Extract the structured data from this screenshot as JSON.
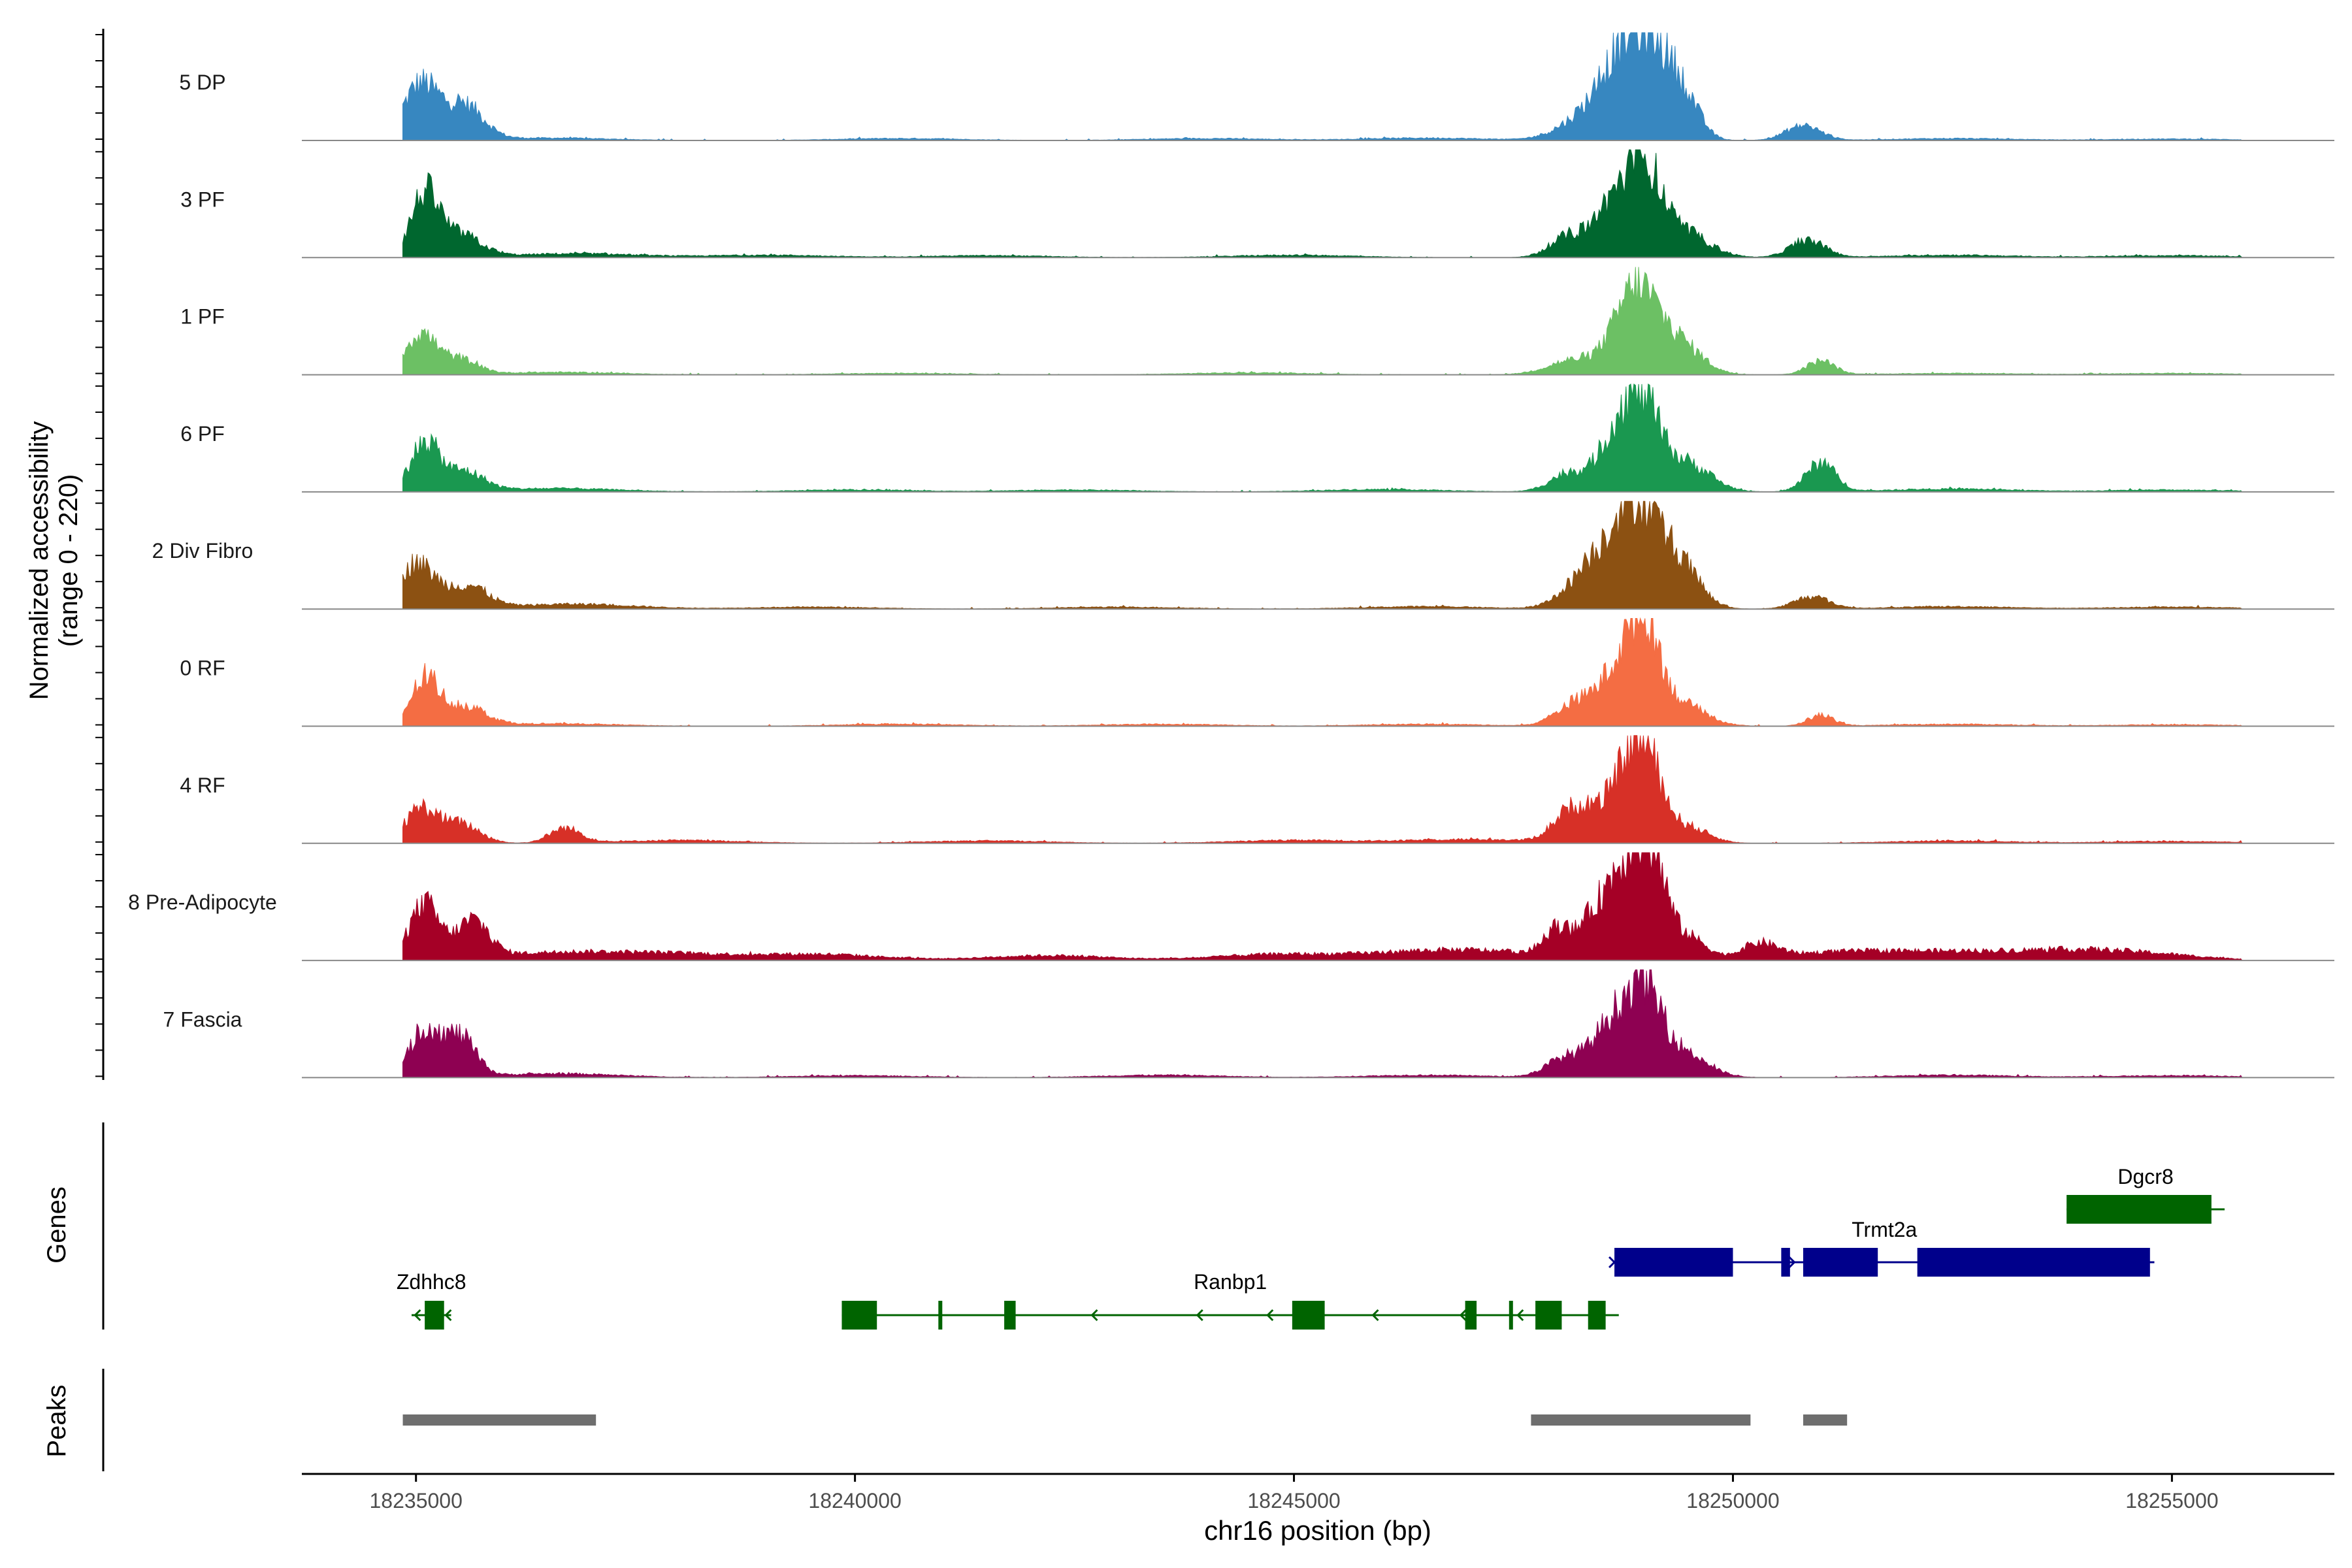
{
  "chart_data": {
    "type": "area",
    "title": "",
    "xlabel": "chr16 position (bp)",
    "ylabel_line1": "Normalized accessibility",
    "ylabel_line2": "(range 0 - 220)",
    "genes_label": "Genes",
    "peaks_label": "Peaks",
    "xlim": [
      18233700,
      18256850
    ],
    "ylim": [
      0,
      220
    ],
    "x_ticks": [
      18235000,
      18240000,
      18245000,
      18250000,
      18255000
    ],
    "x_tick_labels": [
      "18235000",
      "18240000",
      "18245000",
      "18250000",
      "18255000"
    ],
    "tracks": [
      {
        "name": "5 DP",
        "color": "#3787C0",
        "peaks": [
          [
            18235050,
            112,
            200
          ],
          [
            18235550,
            70,
            220
          ],
          [
            18248300,
            40,
            300
          ],
          [
            18248750,
            150,
            260
          ],
          [
            18249100,
            145,
            230
          ],
          [
            18249450,
            70,
            180
          ],
          [
            18250800,
            30,
            200
          ]
        ],
        "noise": [
          [
            18236500,
            5
          ],
          [
            18240500,
            4
          ],
          [
            18244000,
            4
          ],
          [
            18246500,
            5
          ],
          [
            18252500,
            4
          ],
          [
            18255000,
            3
          ]
        ]
      },
      {
        "name": "3 PF",
        "color": "#00672F",
        "peaks": [
          [
            18235100,
            125,
            160
          ],
          [
            18235500,
            45,
            240
          ],
          [
            18248150,
            45,
            220
          ],
          [
            18248650,
            110,
            200
          ],
          [
            18249000,
            160,
            180
          ],
          [
            18249400,
            55,
            300
          ],
          [
            18250850,
            35,
            200
          ]
        ],
        "noise": [
          [
            18236800,
            8
          ],
          [
            18239000,
            5
          ],
          [
            18241500,
            4
          ],
          [
            18245000,
            5
          ],
          [
            18252500,
            5
          ],
          [
            18255000,
            4
          ]
        ]
      },
      {
        "name": "1 PF",
        "color": "#6CC064",
        "peaks": [
          [
            18235050,
            82,
            180
          ],
          [
            18235500,
            30,
            200
          ],
          [
            18248200,
            30,
            300
          ],
          [
            18248900,
            175,
            240
          ],
          [
            18249400,
            60,
            250
          ],
          [
            18251000,
            28,
            160
          ]
        ],
        "noise": [
          [
            18236600,
            5
          ],
          [
            18240500,
            3
          ],
          [
            18244500,
            4
          ],
          [
            18252500,
            3
          ],
          [
            18255000,
            3
          ]
        ]
      },
      {
        "name": "6 PF",
        "color": "#1A9850",
        "peaks": [
          [
            18235100,
            100,
            160
          ],
          [
            18235550,
            40,
            220
          ],
          [
            18248150,
            40,
            220
          ],
          [
            18248700,
            125,
            200
          ],
          [
            18249000,
            140,
            180
          ],
          [
            18249450,
            60,
            280
          ],
          [
            18251000,
            58,
            170
          ]
        ],
        "noise": [
          [
            18236600,
            7
          ],
          [
            18240000,
            4
          ],
          [
            18242500,
            4
          ],
          [
            18246000,
            5
          ],
          [
            18252500,
            6
          ],
          [
            18255000,
            4
          ]
        ]
      },
      {
        "name": "2 Div Fibro",
        "color": "#8C5112",
        "peaks": [
          [
            18235000,
            92,
            220
          ],
          [
            18235600,
            45,
            220
          ],
          [
            18248400,
            80,
            280
          ],
          [
            18248900,
            210,
            260
          ],
          [
            18249400,
            80,
            230
          ],
          [
            18250900,
            25,
            200
          ]
        ],
        "noise": [
          [
            18236800,
            10
          ],
          [
            18239500,
            4
          ],
          [
            18243000,
            4
          ],
          [
            18246500,
            5
          ],
          [
            18252500,
            5
          ],
          [
            18255000,
            4
          ]
        ]
      },
      {
        "name": "0 RF",
        "color": "#F46D43",
        "peaks": [
          [
            18235100,
            92,
            160
          ],
          [
            18235550,
            40,
            240
          ],
          [
            18248200,
            45,
            220
          ],
          [
            18248700,
            110,
            220
          ],
          [
            18249000,
            180,
            170
          ],
          [
            18249400,
            45,
            280
          ],
          [
            18251000,
            22,
            150
          ]
        ],
        "noise": [
          [
            18236600,
            5
          ],
          [
            18240500,
            4
          ],
          [
            18243500,
            4
          ],
          [
            18246500,
            4
          ],
          [
            18252500,
            4
          ],
          [
            18255000,
            3
          ]
        ]
      },
      {
        "name": "4 RF",
        "color": "#D73027",
        "peaks": [
          [
            18235050,
            68,
            180
          ],
          [
            18235500,
            40,
            220
          ],
          [
            18236700,
            30,
            180
          ],
          [
            18248200,
            72,
            220
          ],
          [
            18248750,
            110,
            220
          ],
          [
            18249000,
            150,
            180
          ],
          [
            18249450,
            35,
            250
          ]
        ],
        "noise": [
          [
            18238000,
            6
          ],
          [
            18241500,
            5
          ],
          [
            18245000,
            6
          ],
          [
            18247000,
            8
          ],
          [
            18252500,
            5
          ],
          [
            18255000,
            4
          ]
        ]
      },
      {
        "name": "8 Pre-Adipocyte",
        "color": "#A50026",
        "peaks": [
          [
            18235100,
            100,
            160
          ],
          [
            18235650,
            70,
            180
          ],
          [
            18248000,
            55,
            150
          ],
          [
            18248450,
            90,
            180
          ],
          [
            18248800,
            180,
            180
          ],
          [
            18249100,
            175,
            160
          ],
          [
            18249500,
            45,
            200
          ],
          [
            18250300,
            30,
            200
          ]
        ],
        "noise": [
          [
            18234900,
            14
          ],
          [
            18236700,
            15
          ],
          [
            18238000,
            12
          ],
          [
            18239600,
            12
          ],
          [
            18242200,
            10
          ],
          [
            18244800,
            12
          ],
          [
            18246400,
            14
          ],
          [
            18247400,
            14
          ],
          [
            18251200,
            16
          ],
          [
            18252500,
            14
          ],
          [
            18253800,
            16
          ],
          [
            18254700,
            10
          ]
        ]
      },
      {
        "name": "7 Fascia",
        "color": "#8E0152",
        "peaks": [
          [
            18235100,
            95,
            170
          ],
          [
            18235500,
            80,
            180
          ],
          [
            18248100,
            40,
            220
          ],
          [
            18248650,
            115,
            220
          ],
          [
            18249000,
            150,
            180
          ],
          [
            18249400,
            55,
            280
          ]
        ],
        "noise": [
          [
            18236600,
            8
          ],
          [
            18240000,
            4
          ],
          [
            18243500,
            5
          ],
          [
            18246500,
            5
          ],
          [
            18252500,
            5
          ],
          [
            18255000,
            4
          ]
        ]
      }
    ],
    "genes": [
      {
        "name": "Zdhhc8",
        "strand": "-",
        "color": "#006400",
        "start": 18234950,
        "end": 18235400,
        "exons": [
          [
            18235100,
            18235320
          ]
        ],
        "introns_arrows": [
          18234990,
          18235340
        ]
      },
      {
        "name": "Ranbp1",
        "strand": "-",
        "color": "#006400",
        "start": 18239850,
        "end": 18248700,
        "exons": [
          [
            18239850,
            18240250
          ],
          [
            18240950,
            18240990
          ],
          [
            18241700,
            18241830
          ],
          [
            18244980,
            18245350
          ],
          [
            18246950,
            18247080
          ],
          [
            18247450,
            18247480
          ],
          [
            18247750,
            18248050
          ],
          [
            18248350,
            18248550
          ]
        ],
        "introns_arrows": [
          18242700,
          18243900,
          18244700,
          18245900,
          18246900,
          18247550
        ]
      },
      {
        "name": "Trmt2a",
        "strand": "+",
        "color": "#00008B",
        "start": 18248650,
        "end": 18254800,
        "exons": [
          [
            18248650,
            18250000
          ],
          [
            18250550,
            18250650
          ],
          [
            18250800,
            18251650
          ],
          [
            18252100,
            18254750
          ]
        ],
        "introns_arrows": [
          18248650,
          18250700
        ]
      },
      {
        "name": "Dgcr8",
        "strand": "+",
        "color": "#006400",
        "start": 18253800,
        "end": 18255600,
        "exons": [
          [
            18253800,
            18255450
          ]
        ],
        "introns_arrows": []
      }
    ],
    "peak_regions": [
      [
        18234850,
        18237050
      ],
      [
        18247700,
        18250200
      ],
      [
        18250800,
        18251300
      ]
    ]
  }
}
